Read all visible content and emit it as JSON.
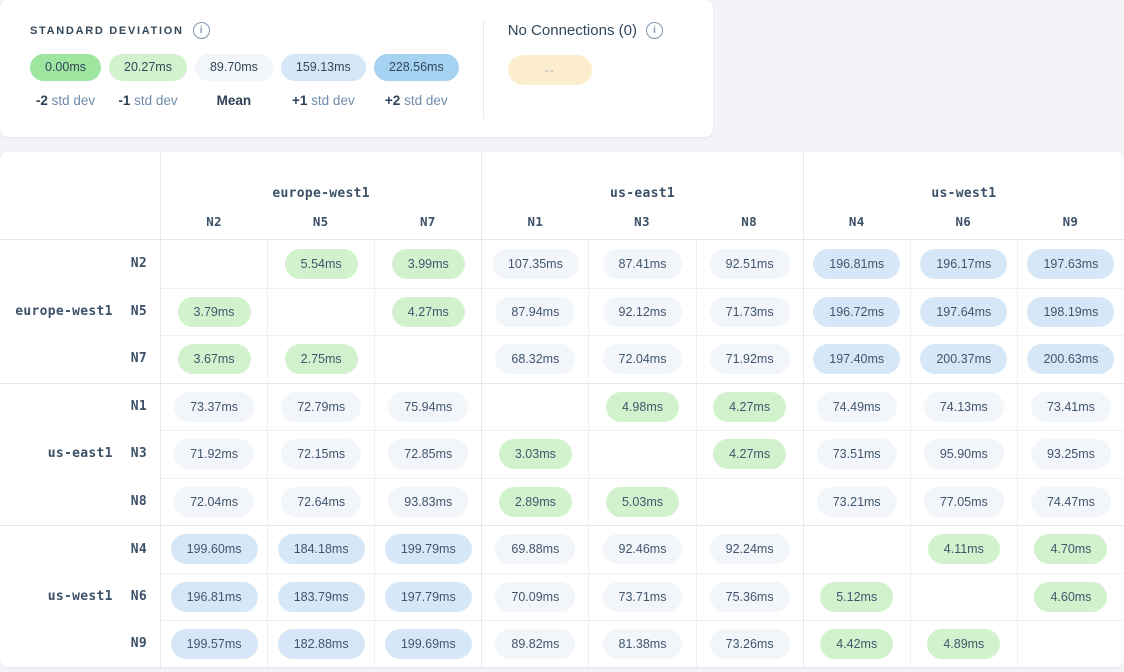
{
  "colors": {
    "green_strong": "#9ee6a0",
    "green": "#d2f2cd",
    "neutral": "#f2f5f9",
    "blue": "#d6e8f7",
    "blue_strong": "#a5d2f1",
    "beige": "#fdedcf"
  },
  "legend": {
    "title": "STANDARD DEVIATION",
    "info_icon": "info-icon",
    "items": [
      {
        "value": "0.00ms",
        "tone": "green_strong",
        "label_bold": "-2",
        "label_rest": "std dev"
      },
      {
        "value": "20.27ms",
        "tone": "green",
        "label_bold": "-1",
        "label_rest": "std dev"
      },
      {
        "value": "89.70ms",
        "tone": "neutral",
        "label_bold": "Mean",
        "label_rest": ""
      },
      {
        "value": "159.13ms",
        "tone": "blue",
        "label_bold": "+1",
        "label_rest": "std dev"
      },
      {
        "value": "228.56ms",
        "tone": "blue_strong",
        "label_bold": "+2",
        "label_rest": "std dev"
      }
    ]
  },
  "no_connections": {
    "title": "No Connections (0)",
    "info_icon": "info-icon",
    "badge_text": "--",
    "badge_tone": "beige"
  },
  "matrix": {
    "column_groups": [
      {
        "region": "europe-west1",
        "nodes": [
          "N2",
          "N5",
          "N7"
        ]
      },
      {
        "region": "us-east1",
        "nodes": [
          "N1",
          "N3",
          "N8"
        ]
      },
      {
        "region": "us-west1",
        "nodes": [
          "N4",
          "N6",
          "N9"
        ]
      }
    ],
    "row_groups": [
      {
        "region": "europe-west1",
        "rows": [
          {
            "node": "N2",
            "cells": [
              null,
              {
                "v": "5.54ms",
                "t": "green"
              },
              {
                "v": "3.99ms",
                "t": "green"
              },
              {
                "v": "107.35ms",
                "t": "neutral"
              },
              {
                "v": "87.41ms",
                "t": "neutral"
              },
              {
                "v": "92.51ms",
                "t": "neutral"
              },
              {
                "v": "196.81ms",
                "t": "blue"
              },
              {
                "v": "196.17ms",
                "t": "blue"
              },
              {
                "v": "197.63ms",
                "t": "blue"
              }
            ]
          },
          {
            "node": "N5",
            "cells": [
              {
                "v": "3.79ms",
                "t": "green"
              },
              null,
              {
                "v": "4.27ms",
                "t": "green"
              },
              {
                "v": "87.94ms",
                "t": "neutral"
              },
              {
                "v": "92.12ms",
                "t": "neutral"
              },
              {
                "v": "71.73ms",
                "t": "neutral"
              },
              {
                "v": "196.72ms",
                "t": "blue"
              },
              {
                "v": "197.64ms",
                "t": "blue"
              },
              {
                "v": "198.19ms",
                "t": "blue"
              }
            ]
          },
          {
            "node": "N7",
            "cells": [
              {
                "v": "3.67ms",
                "t": "green"
              },
              {
                "v": "2.75ms",
                "t": "green"
              },
              null,
              {
                "v": "68.32ms",
                "t": "neutral"
              },
              {
                "v": "72.04ms",
                "t": "neutral"
              },
              {
                "v": "71.92ms",
                "t": "neutral"
              },
              {
                "v": "197.40ms",
                "t": "blue"
              },
              {
                "v": "200.37ms",
                "t": "blue"
              },
              {
                "v": "200.63ms",
                "t": "blue"
              }
            ]
          }
        ]
      },
      {
        "region": "us-east1",
        "rows": [
          {
            "node": "N1",
            "cells": [
              {
                "v": "73.37ms",
                "t": "neutral"
              },
              {
                "v": "72.79ms",
                "t": "neutral"
              },
              {
                "v": "75.94ms",
                "t": "neutral"
              },
              null,
              {
                "v": "4.98ms",
                "t": "green"
              },
              {
                "v": "4.27ms",
                "t": "green"
              },
              {
                "v": "74.49ms",
                "t": "neutral"
              },
              {
                "v": "74.13ms",
                "t": "neutral"
              },
              {
                "v": "73.41ms",
                "t": "neutral"
              }
            ]
          },
          {
            "node": "N3",
            "cells": [
              {
                "v": "71.92ms",
                "t": "neutral"
              },
              {
                "v": "72.15ms",
                "t": "neutral"
              },
              {
                "v": "72.85ms",
                "t": "neutral"
              },
              {
                "v": "3.03ms",
                "t": "green"
              },
              null,
              {
                "v": "4.27ms",
                "t": "green"
              },
              {
                "v": "73.51ms",
                "t": "neutral"
              },
              {
                "v": "95.90ms",
                "t": "neutral"
              },
              {
                "v": "93.25ms",
                "t": "neutral"
              }
            ]
          },
          {
            "node": "N8",
            "cells": [
              {
                "v": "72.04ms",
                "t": "neutral"
              },
              {
                "v": "72.64ms",
                "t": "neutral"
              },
              {
                "v": "93.83ms",
                "t": "neutral"
              },
              {
                "v": "2.89ms",
                "t": "green"
              },
              {
                "v": "5.03ms",
                "t": "green"
              },
              null,
              {
                "v": "73.21ms",
                "t": "neutral"
              },
              {
                "v": "77.05ms",
                "t": "neutral"
              },
              {
                "v": "74.47ms",
                "t": "neutral"
              }
            ]
          }
        ]
      },
      {
        "region": "us-west1",
        "rows": [
          {
            "node": "N4",
            "cells": [
              {
                "v": "199.60ms",
                "t": "blue"
              },
              {
                "v": "184.18ms",
                "t": "blue"
              },
              {
                "v": "199.79ms",
                "t": "blue"
              },
              {
                "v": "69.88ms",
                "t": "neutral"
              },
              {
                "v": "92.46ms",
                "t": "neutral"
              },
              {
                "v": "92.24ms",
                "t": "neutral"
              },
              null,
              {
                "v": "4.11ms",
                "t": "green"
              },
              {
                "v": "4.70ms",
                "t": "green"
              }
            ]
          },
          {
            "node": "N6",
            "cells": [
              {
                "v": "196.81ms",
                "t": "blue"
              },
              {
                "v": "183.79ms",
                "t": "blue"
              },
              {
                "v": "197.79ms",
                "t": "blue"
              },
              {
                "v": "70.09ms",
                "t": "neutral"
              },
              {
                "v": "73.71ms",
                "t": "neutral"
              },
              {
                "v": "75.36ms",
                "t": "neutral"
              },
              {
                "v": "5.12ms",
                "t": "green"
              },
              null,
              {
                "v": "4.60ms",
                "t": "green"
              }
            ]
          },
          {
            "node": "N9",
            "cells": [
              {
                "v": "199.57ms",
                "t": "blue"
              },
              {
                "v": "182.88ms",
                "t": "blue"
              },
              {
                "v": "199.69ms",
                "t": "blue"
              },
              {
                "v": "89.82ms",
                "t": "neutral"
              },
              {
                "v": "81.38ms",
                "t": "neutral"
              },
              {
                "v": "73.26ms",
                "t": "neutral"
              },
              {
                "v": "4.42ms",
                "t": "green"
              },
              {
                "v": "4.89ms",
                "t": "green"
              },
              null
            ]
          }
        ]
      }
    ]
  }
}
